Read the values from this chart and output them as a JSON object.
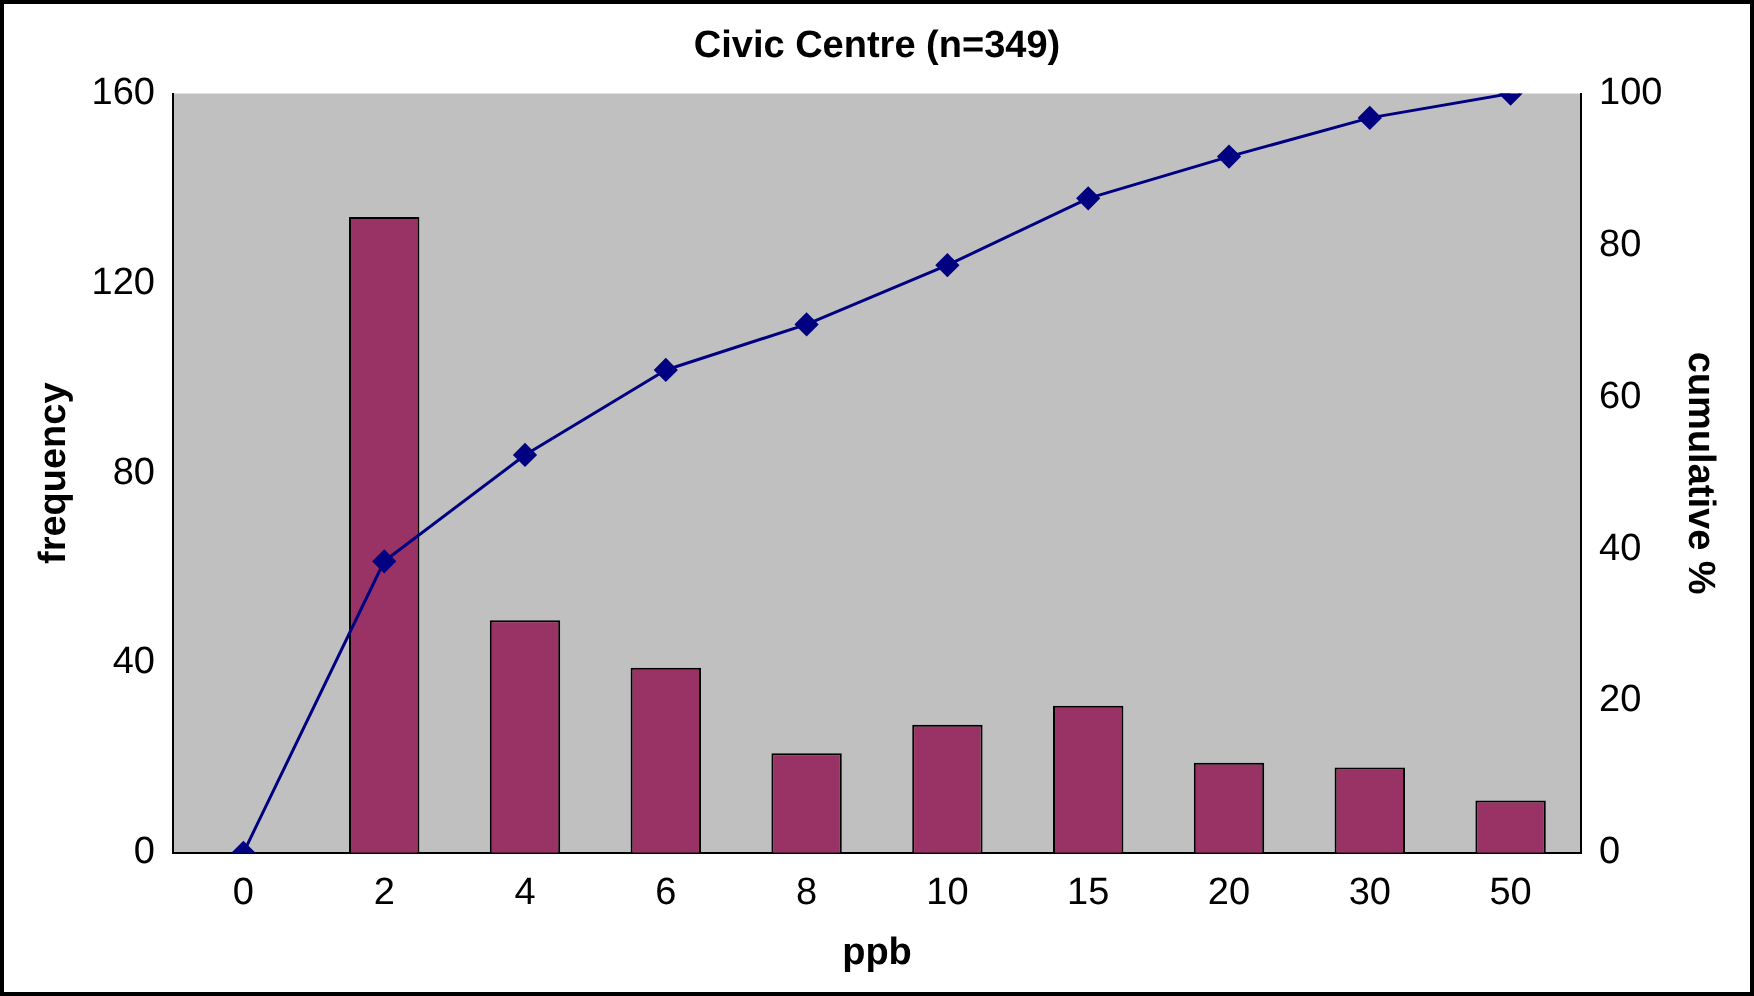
{
  "chart_data": {
    "type": "bar",
    "title": "Civic Centre (n=349)",
    "xlabel": "ppb",
    "ylabel": "frequency",
    "y2label": "cumulative %",
    "categories": [
      "0",
      "2",
      "4",
      "6",
      "8",
      "10",
      "15",
      "20",
      "30",
      "50"
    ],
    "series": [
      {
        "color": "#993366",
        "values": [
          0,
          134,
          49,
          39,
          21,
          27,
          31,
          19,
          18,
          11
        ]
      },
      {
        "type": "line",
        "axis": "y2",
        "color": "#000080",
        "values": [
          0,
          38.4,
          52.4,
          63.6,
          69.6,
          77.4,
          86.2,
          91.7,
          96.8,
          100
        ]
      }
    ],
    "ylim": [
      0,
      160
    ],
    "yticks": [
      0,
      40,
      80,
      120,
      160
    ],
    "y2lim": [
      0,
      100
    ],
    "y2ticks": [
      0,
      20,
      40,
      60,
      80,
      100
    ],
    "grid": false,
    "legend": false,
    "marker": "diamond",
    "line_style": "solid"
  }
}
